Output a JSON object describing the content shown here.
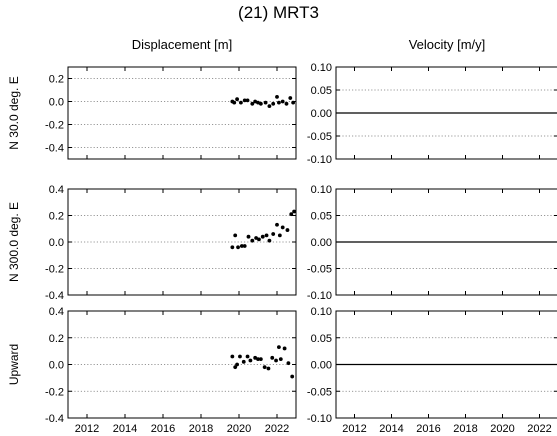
{
  "title": "(21) MRT3",
  "columns": {
    "displacement": "Displacement [m]",
    "velocity": "Velocity [m/y]"
  },
  "chart_data": [
    {
      "type": "scatter",
      "panel": "displacement",
      "row": "N 30.0 deg. E",
      "ylabel": "N 30.0 deg. E",
      "xlabel": "",
      "xlim": [
        2011,
        2023
      ],
      "ylim": [
        -0.5,
        0.3
      ],
      "yticks": [
        0.2,
        0.0,
        -0.2,
        -0.4
      ],
      "ytick_labels": [
        "0.2",
        "0.0",
        "-0.2",
        "-0.4"
      ],
      "xticks": [
        2012,
        2014,
        2016,
        2018,
        2020,
        2022
      ],
      "xtick_labels": [],
      "grid": "horizontal dotted",
      "series": [
        {
          "x": [
            2019.65,
            2019.75,
            2019.9,
            2020.1,
            2020.3,
            2020.45,
            2020.7,
            2020.85,
            2021.0,
            2021.15,
            2021.4,
            2021.6,
            2021.8,
            2022.0,
            2022.1,
            2022.3,
            2022.5,
            2022.7,
            2022.85
          ],
          "y": [
            0.0,
            -0.01,
            0.02,
            -0.01,
            0.01,
            0.01,
            -0.02,
            0.0,
            -0.01,
            -0.02,
            -0.01,
            -0.04,
            -0.02,
            0.04,
            -0.01,
            0.0,
            -0.02,
            0.03,
            -0.01
          ]
        }
      ]
    },
    {
      "type": "line",
      "panel": "velocity",
      "row": "N 30.0 deg. E",
      "xlim": [
        2011,
        2023
      ],
      "ylim": [
        -0.1,
        0.1
      ],
      "yticks": [
        0.1,
        0.05,
        0.0,
        -0.05,
        -0.1
      ],
      "ytick_labels": [
        "0.10",
        "0.05",
        "0.00",
        "-0.05",
        "-0.10"
      ],
      "xticks": [
        2012,
        2014,
        2016,
        2018,
        2020,
        2022
      ],
      "xtick_labels": [],
      "grid": "horizontal dotted",
      "series": [
        {
          "x": [
            2011,
            2023
          ],
          "y": [
            0.0,
            0.0
          ]
        }
      ]
    },
    {
      "type": "scatter",
      "panel": "displacement",
      "row": "N 300.0 deg. E",
      "ylabel": "N 300.0 deg. E",
      "xlabel": "",
      "xlim": [
        2011,
        2023
      ],
      "ylim": [
        -0.4,
        0.4
      ],
      "yticks": [
        0.4,
        0.2,
        0.0,
        -0.2,
        -0.4
      ],
      "ytick_labels": [
        "0.4",
        "0.2",
        "0.0",
        "-0.2",
        "-0.4"
      ],
      "xticks": [
        2012,
        2014,
        2016,
        2018,
        2020,
        2022
      ],
      "xtick_labels": [],
      "grid": "horizontal dotted",
      "series": [
        {
          "x": [
            2019.65,
            2019.8,
            2019.95,
            2020.15,
            2020.3,
            2020.5,
            2020.7,
            2020.9,
            2021.05,
            2021.25,
            2021.45,
            2021.6,
            2021.8,
            2022.0,
            2022.15,
            2022.3,
            2022.55,
            2022.75,
            2022.9
          ],
          "y": [
            -0.04,
            0.05,
            -0.04,
            -0.03,
            -0.03,
            0.04,
            0.01,
            0.03,
            0.02,
            0.04,
            0.05,
            0.01,
            0.06,
            0.13,
            0.05,
            0.11,
            0.09,
            0.21,
            0.23
          ]
        }
      ]
    },
    {
      "type": "line",
      "panel": "velocity",
      "row": "N 300.0 deg. E",
      "xlim": [
        2011,
        2023
      ],
      "ylim": [
        -0.1,
        0.1
      ],
      "yticks": [
        0.1,
        0.05,
        0.0,
        -0.05,
        -0.1
      ],
      "ytick_labels": [
        "0.10",
        "0.05",
        "0.00",
        "-0.05",
        "-0.10"
      ],
      "xticks": [
        2012,
        2014,
        2016,
        2018,
        2020,
        2022
      ],
      "xtick_labels": [],
      "grid": "horizontal dotted",
      "series": [
        {
          "x": [
            2011,
            2023
          ],
          "y": [
            0.0,
            0.0
          ]
        }
      ]
    },
    {
      "type": "scatter",
      "panel": "displacement",
      "row": "Upward",
      "ylabel": "Upward",
      "xlabel": "",
      "xlim": [
        2011,
        2023
      ],
      "ylim": [
        -0.4,
        0.4
      ],
      "yticks": [
        0.4,
        0.2,
        0.0,
        -0.2,
        -0.4
      ],
      "ytick_labels": [
        "0.4",
        "0.2",
        "0.0",
        "-0.2",
        "-0.4"
      ],
      "xticks": [
        2012,
        2014,
        2016,
        2018,
        2020,
        2022
      ],
      "xtick_labels": [
        "2012",
        "2014",
        "2016",
        "2018",
        "2020",
        "2022"
      ],
      "grid": "horizontal dotted",
      "series": [
        {
          "x": [
            2019.65,
            2019.8,
            2019.9,
            2020.05,
            2020.25,
            2020.45,
            2020.6,
            2020.85,
            2021.0,
            2021.15,
            2021.35,
            2021.55,
            2021.75,
            2021.95,
            2022.1,
            2022.2,
            2022.4,
            2022.6,
            2022.8
          ],
          "y": [
            0.06,
            -0.02,
            0.0,
            0.06,
            0.02,
            0.06,
            0.03,
            0.05,
            0.04,
            0.04,
            -0.02,
            -0.03,
            0.05,
            0.03,
            0.13,
            0.04,
            0.12,
            0.01,
            -0.09
          ]
        }
      ]
    },
    {
      "type": "line",
      "panel": "velocity",
      "row": "Upward",
      "xlim": [
        2011,
        2023
      ],
      "ylim": [
        -0.1,
        0.1
      ],
      "yticks": [
        0.1,
        0.05,
        0.0,
        -0.05,
        -0.1
      ],
      "ytick_labels": [
        "0.10",
        "0.05",
        "0.00",
        "-0.05",
        "-0.10"
      ],
      "xticks": [
        2012,
        2014,
        2016,
        2018,
        2020,
        2022
      ],
      "xtick_labels": [
        "2012",
        "2014",
        "2016",
        "2018",
        "2020",
        "2022"
      ],
      "grid": "horizontal dotted",
      "series": [
        {
          "x": [
            2011,
            2023
          ],
          "y": [
            0.0,
            0.0
          ]
        }
      ]
    }
  ]
}
